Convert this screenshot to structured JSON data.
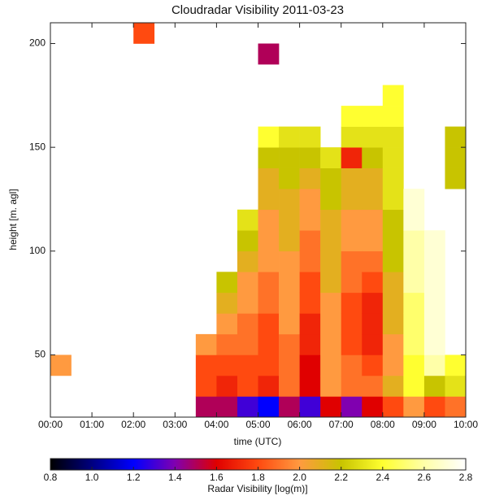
{
  "chart_data": {
    "type": "heatmap",
    "title": "Cloudradar Visibility 2011-03-23",
    "x_label": "time (UTC)",
    "y_label": "height [m. agl]",
    "colorbar_label": "Radar Visibility [log(m)]",
    "xlim": [
      0,
      10
    ],
    "xticks": [
      {
        "value": 0,
        "label": "00:00"
      },
      {
        "value": 1,
        "label": "01:00"
      },
      {
        "value": 2,
        "label": "02:00"
      },
      {
        "value": 3,
        "label": "03:00"
      },
      {
        "value": 4,
        "label": "04:00"
      },
      {
        "value": 5,
        "label": "05:00"
      },
      {
        "value": 6,
        "label": "06:00"
      },
      {
        "value": 7,
        "label": "07:00"
      },
      {
        "value": 8,
        "label": "08:00"
      },
      {
        "value": 9,
        "label": "09:00"
      },
      {
        "value": 10,
        "label": "10:00"
      }
    ],
    "ylim": [
      20,
      210
    ],
    "yticks": [
      50,
      100,
      150,
      200
    ],
    "clim": [
      0.8,
      2.8
    ],
    "cticks": [
      {
        "value": 0.8,
        "label": "0.8"
      },
      {
        "value": 1,
        "label": "1.0"
      },
      {
        "value": 1.2,
        "label": "1.2"
      },
      {
        "value": 1.4,
        "label": "1.4"
      },
      {
        "value": 1.6,
        "label": "1.6"
      },
      {
        "value": 1.8,
        "label": "1.8"
      },
      {
        "value": 2,
        "label": "2.0"
      },
      {
        "value": 2.2,
        "label": "2.2"
      },
      {
        "value": 2.4,
        "label": "2.4"
      },
      {
        "value": 2.6,
        "label": "2.6"
      },
      {
        "value": 2.8,
        "label": "2.8"
      }
    ],
    "colors": [
      "#000000",
      "#000080",
      "#0000ff",
      "#8000b0",
      "#e00000",
      "#ff4a10",
      "#ff9a40",
      "#c8c400",
      "#ffff30",
      "#ffffa8",
      "#ffffff"
    ],
    "x_bins": [
      0,
      0.5,
      1,
      1.5,
      2,
      2.5,
      3,
      3.5,
      4,
      4.5,
      5,
      5.5,
      6,
      6.5,
      7,
      7.5,
      8,
      8.5,
      9,
      9.5,
      10
    ],
    "y_bins": [
      20,
      30,
      40,
      50,
      60,
      70,
      80,
      90,
      100,
      110,
      120,
      130,
      140,
      150,
      160,
      170,
      180,
      190,
      200,
      210
    ],
    "values": [
      [
        null,
        null,
        2.0,
        null,
        null,
        null,
        null,
        null,
        null,
        null,
        null,
        null,
        null,
        null,
        null,
        null,
        null,
        null,
        null
      ],
      [
        null,
        null,
        null,
        null,
        null,
        null,
        null,
        null,
        null,
        null,
        null,
        null,
        null,
        null,
        null,
        null,
        null,
        null,
        null
      ],
      [
        null,
        null,
        null,
        null,
        null,
        null,
        null,
        null,
        null,
        null,
        null,
        null,
        null,
        null,
        null,
        null,
        null,
        null,
        null
      ],
      [
        null,
        null,
        null,
        null,
        null,
        null,
        null,
        null,
        null,
        null,
        null,
        null,
        null,
        null,
        null,
        null,
        null,
        null,
        null
      ],
      [
        null,
        null,
        null,
        null,
        null,
        null,
        null,
        null,
        null,
        null,
        null,
        null,
        null,
        null,
        null,
        null,
        null,
        null,
        1.8
      ],
      [
        null,
        null,
        null,
        null,
        null,
        null,
        null,
        null,
        null,
        null,
        null,
        null,
        null,
        null,
        null,
        null,
        null,
        null,
        null
      ],
      [
        null,
        null,
        null,
        null,
        null,
        null,
        null,
        null,
        null,
        null,
        null,
        null,
        null,
        null,
        null,
        null,
        null,
        null,
        null
      ],
      [
        1.5,
        1.8,
        1.8,
        2.0,
        null,
        null,
        null,
        null,
        null,
        null,
        null,
        null,
        null,
        null,
        null,
        null,
        null,
        null,
        null
      ],
      [
        1.5,
        1.7,
        1.8,
        1.9,
        2.0,
        2.1,
        2.2,
        null,
        null,
        null,
        null,
        null,
        null,
        null,
        null,
        null,
        null,
        null,
        null
      ],
      [
        1.3,
        1.8,
        1.8,
        1.9,
        1.9,
        2.0,
        2.0,
        2.1,
        2.2,
        2.3,
        null,
        null,
        null,
        null,
        null,
        null,
        null,
        null,
        null
      ],
      [
        1.2,
        1.7,
        1.8,
        1.8,
        1.8,
        1.9,
        1.9,
        2.0,
        2.0,
        2.0,
        2.1,
        2.1,
        2.2,
        2.4,
        null,
        null,
        null,
        1.5,
        null
      ],
      [
        1.5,
        1.9,
        1.9,
        1.9,
        2.0,
        2.0,
        2.0,
        2.0,
        2.1,
        2.1,
        2.1,
        2.2,
        2.2,
        2.3,
        null,
        null,
        null,
        null,
        null
      ],
      [
        1.3,
        1.6,
        1.6,
        1.7,
        1.7,
        1.8,
        1.8,
        1.9,
        1.9,
        2.0,
        2.0,
        2.1,
        2.2,
        2.3,
        null,
        null,
        null,
        null,
        null
      ],
      [
        1.6,
        2.0,
        2.0,
        2.0,
        2.0,
        2.0,
        2.1,
        2.1,
        2.1,
        2.1,
        2.2,
        2.2,
        2.3,
        null,
        null,
        null,
        null,
        null,
        null
      ],
      [
        1.4,
        1.9,
        1.9,
        1.8,
        1.8,
        1.8,
        1.9,
        1.9,
        2.0,
        2.0,
        2.1,
        2.1,
        1.7,
        2.3,
        2.4,
        null,
        null,
        null,
        null
      ],
      [
        1.6,
        1.9,
        1.8,
        1.7,
        1.7,
        1.7,
        1.8,
        1.9,
        2.0,
        2.0,
        2.1,
        2.1,
        2.2,
        2.3,
        2.4,
        null,
        null,
        null,
        null
      ],
      [
        1.8,
        2.1,
        2.0,
        2.0,
        2.1,
        2.1,
        2.1,
        2.2,
        2.2,
        2.2,
        2.3,
        2.3,
        2.3,
        2.3,
        2.4,
        2.4,
        null,
        null,
        null
      ],
      [
        2.0,
        2.4,
        2.4,
        2.5,
        2.5,
        2.5,
        2.6,
        2.6,
        2.6,
        2.7,
        2.7,
        null,
        null,
        null,
        null,
        null,
        null,
        null,
        null
      ],
      [
        1.8,
        2.2,
        2.6,
        2.7,
        2.7,
        2.7,
        2.7,
        2.7,
        2.7,
        null,
        null,
        null,
        null,
        null,
        null,
        null,
        null,
        null,
        null
      ],
      [
        1.9,
        2.3,
        2.4,
        null,
        null,
        null,
        null,
        null,
        null,
        null,
        null,
        2.2,
        2.2,
        2.2,
        null,
        null,
        null,
        null,
        null
      ]
    ]
  }
}
